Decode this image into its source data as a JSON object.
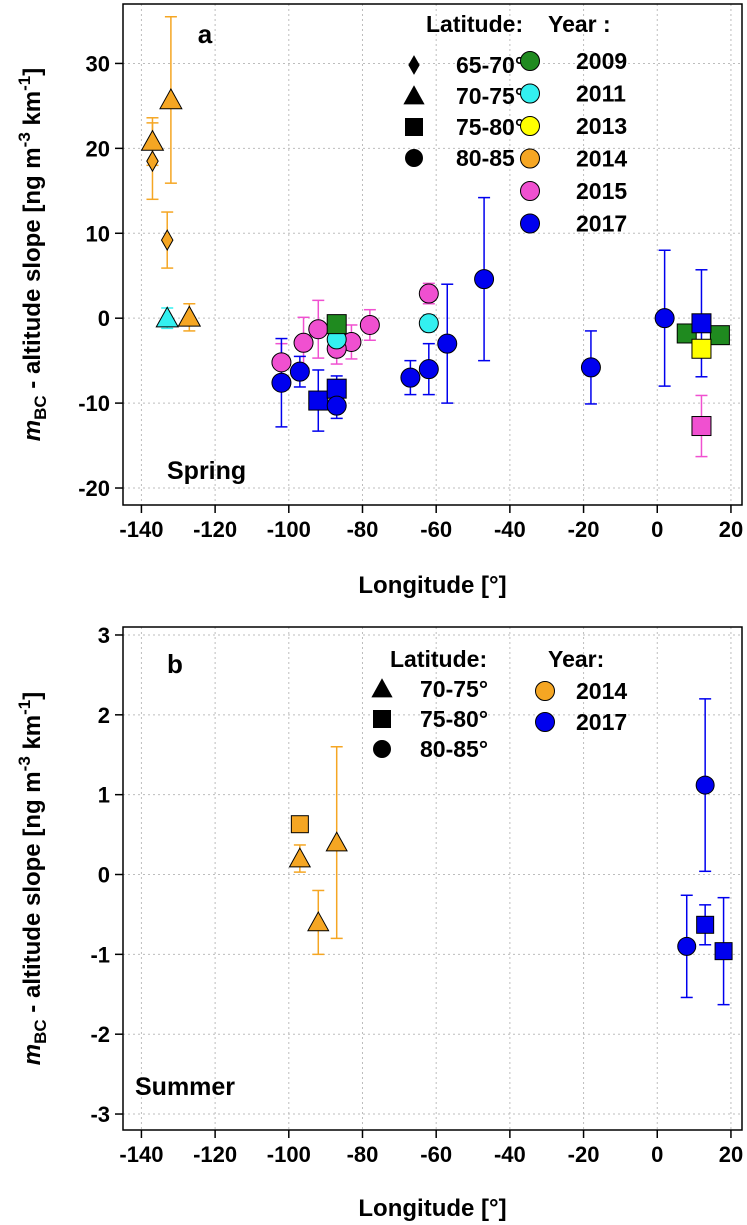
{
  "chart_data": [
    {
      "type": "scatter",
      "panel_label": "a",
      "season": "Spring",
      "xlabel": "Longitude [°]",
      "ylabel_main": "m",
      "ylabel_sub": "BC",
      "ylabel_rest": " - altitude slope [ng m",
      "ylabel_exp1": "-3",
      "ylabel_km": " km",
      "ylabel_exp2": "-1",
      "ylabel_close": "]",
      "xlim": [
        -145,
        23
      ],
      "ylim": [
        -22,
        37
      ],
      "xticks": [
        -140,
        -120,
        -100,
        -80,
        -60,
        -40,
        -20,
        0,
        20
      ],
      "yticks": [
        -20,
        -10,
        0,
        10,
        20,
        30
      ],
      "grid": true,
      "legend_latitude_title": "Latitude:",
      "legend_year_title": "Year :",
      "legend_latitude": [
        {
          "shape": "diamond",
          "label": "65-70°"
        },
        {
          "shape": "triangle",
          "label": "70-75°"
        },
        {
          "shape": "square",
          "label": "75-80°"
        },
        {
          "shape": "circle",
          "label": "80-85"
        }
      ],
      "legend_year": [
        {
          "year": "2009",
          "color": "#1f8a1f"
        },
        {
          "year": "2011",
          "color": "#33f0f0"
        },
        {
          "year": "2013",
          "color": "#ffff00"
        },
        {
          "year": "2014",
          "color": "#f5a623"
        },
        {
          "year": "2015",
          "color": "#f050d0"
        },
        {
          "year": "2017",
          "color": "#0000ee"
        }
      ],
      "points": [
        {
          "x": -137,
          "y": 18.5,
          "err": [
            4.5,
            4.5
          ],
          "shape": "diamond",
          "year": "2014"
        },
        {
          "x": -133,
          "y": 9.2,
          "err": [
            3.3,
            3.3
          ],
          "shape": "diamond",
          "year": "2014"
        },
        {
          "x": -137,
          "y": 20.8,
          "err": [
            2.8,
            2.8
          ],
          "shape": "triangle",
          "year": "2014"
        },
        {
          "x": -132,
          "y": 25.7,
          "err": [
            9.8,
            9.8
          ],
          "shape": "triangle",
          "year": "2014"
        },
        {
          "x": -127,
          "y": 0.1,
          "err": [
            1.6,
            1.6
          ],
          "shape": "triangle",
          "year": "2014"
        },
        {
          "x": -133,
          "y": 0.0,
          "err": [
            1.2,
            1.2
          ],
          "shape": "triangle",
          "year": "2011"
        },
        {
          "x": -102,
          "y": -5.2,
          "err": [
            2.2,
            2.2
          ],
          "shape": "circle",
          "year": "2015"
        },
        {
          "x": -96,
          "y": -2.9,
          "err": [
            3.0,
            3.0
          ],
          "shape": "circle",
          "year": "2015"
        },
        {
          "x": -92,
          "y": -1.3,
          "err": [
            3.4,
            3.4
          ],
          "shape": "circle",
          "year": "2015"
        },
        {
          "x": -83,
          "y": -2.8,
          "err": [
            2.0,
            2.0
          ],
          "shape": "circle",
          "year": "2015"
        },
        {
          "x": -78,
          "y": -0.8,
          "err": [
            1.8,
            1.8
          ],
          "shape": "circle",
          "year": "2015"
        },
        {
          "x": -87,
          "y": -3.6,
          "err": [
            1.8,
            1.8
          ],
          "shape": "circle",
          "year": "2015"
        },
        {
          "x": -62,
          "y": 2.9,
          "err": [
            1.2,
            1.2
          ],
          "shape": "circle",
          "year": "2015"
        },
        {
          "x": 12,
          "y": -12.7,
          "err": [
            3.6,
            3.6
          ],
          "shape": "square",
          "year": "2015"
        },
        {
          "x": -87,
          "y": -2.5,
          "err": [
            1.2,
            1.2
          ],
          "shape": "circle",
          "year": "2011"
        },
        {
          "x": -62,
          "y": -0.6,
          "err": [
            1.0,
            1.0
          ],
          "shape": "circle",
          "year": "2011"
        },
        {
          "x": -87,
          "y": -0.7,
          "err": [
            0.8,
            0.8
          ],
          "shape": "square",
          "year": "2009"
        },
        {
          "x": 8,
          "y": -1.8,
          "err": [
            0.8,
            0.8
          ],
          "shape": "square",
          "year": "2009"
        },
        {
          "x": 17,
          "y": -2.0,
          "err": [
            0.8,
            0.8
          ],
          "shape": "square",
          "year": "2009"
        },
        {
          "x": 12,
          "y": -3.6,
          "err": [
            0.8,
            0.8
          ],
          "shape": "square",
          "year": "2013"
        },
        {
          "x": -102,
          "y": -7.6,
          "err": [
            5.2,
            5.2
          ],
          "shape": "circle",
          "year": "2017"
        },
        {
          "x": -97,
          "y": -6.3,
          "err": [
            1.8,
            1.8
          ],
          "shape": "circle",
          "year": "2017"
        },
        {
          "x": -92,
          "y": -9.7,
          "err": [
            3.6,
            3.6
          ],
          "shape": "square",
          "year": "2017"
        },
        {
          "x": -87,
          "y": -8.3,
          "err": [
            1.5,
            1.5
          ],
          "shape": "square",
          "year": "2017"
        },
        {
          "x": -87,
          "y": -10.3,
          "err": [
            1.5,
            1.5
          ],
          "shape": "circle",
          "year": "2017"
        },
        {
          "x": -67,
          "y": -7.0,
          "err": [
            2.0,
            2.0
          ],
          "shape": "circle",
          "year": "2017"
        },
        {
          "x": -62,
          "y": -6.0,
          "err": [
            3.0,
            3.0
          ],
          "shape": "circle",
          "year": "2017"
        },
        {
          "x": -57,
          "y": -3.0,
          "err": [
            7.0,
            7.0
          ],
          "shape": "circle",
          "year": "2017"
        },
        {
          "x": -47,
          "y": 4.6,
          "err": [
            9.6,
            9.6
          ],
          "shape": "circle",
          "year": "2017"
        },
        {
          "x": -18,
          "y": -5.8,
          "err": [
            4.3,
            4.3
          ],
          "shape": "circle",
          "year": "2017"
        },
        {
          "x": 2,
          "y": 0.0,
          "err": [
            8.0,
            8.0
          ],
          "shape": "circle",
          "year": "2017"
        },
        {
          "x": 12,
          "y": -0.6,
          "err": [
            6.3,
            6.3
          ],
          "shape": "square",
          "year": "2017"
        }
      ]
    },
    {
      "type": "scatter",
      "panel_label": "b",
      "season": "Summer",
      "xlabel": "Longitude [°]",
      "ylabel_main": "m",
      "ylabel_sub": "BC",
      "ylabel_rest": " - altitude slope [ng m",
      "ylabel_exp1": "-3",
      "ylabel_km": " km",
      "ylabel_exp2": "-1",
      "ylabel_close": "]",
      "xlim": [
        -145,
        23
      ],
      "ylim": [
        -3.2,
        3.1
      ],
      "xticks": [
        -140,
        -120,
        -100,
        -80,
        -60,
        -40,
        -20,
        0,
        20
      ],
      "yticks": [
        -3,
        -2,
        -1,
        0,
        1,
        2,
        3
      ],
      "grid": true,
      "legend_latitude_title": "Latitude:",
      "legend_year_title": "Year:",
      "legend_latitude": [
        {
          "shape": "triangle",
          "label": "70-75°"
        },
        {
          "shape": "square",
          "label": "75-80°"
        },
        {
          "shape": "circle",
          "label": "80-85°"
        }
      ],
      "legend_year": [
        {
          "year": "2014",
          "color": "#f5a623"
        },
        {
          "year": "2017",
          "color": "#0000ee"
        }
      ],
      "points": [
        {
          "x": -97,
          "y": 0.63,
          "err": [
            0.1,
            0.1
          ],
          "shape": "square",
          "year": "2014"
        },
        {
          "x": -97,
          "y": 0.2,
          "err": [
            0.17,
            0.17
          ],
          "shape": "triangle",
          "year": "2014"
        },
        {
          "x": -92,
          "y": -0.6,
          "err": [
            0.4,
            0.4
          ],
          "shape": "triangle",
          "year": "2014"
        },
        {
          "x": -87,
          "y": 0.4,
          "err": [
            1.2,
            1.2
          ],
          "shape": "triangle",
          "year": "2014"
        },
        {
          "x": 8,
          "y": -0.9,
          "err": [
            0.64,
            0.64
          ],
          "shape": "circle",
          "year": "2017"
        },
        {
          "x": 13,
          "y": 1.12,
          "err": [
            1.08,
            1.08
          ],
          "shape": "circle",
          "year": "2017"
        },
        {
          "x": 13,
          "y": -0.63,
          "err": [
            0.25,
            0.25
          ],
          "shape": "square",
          "year": "2017"
        },
        {
          "x": 18,
          "y": -0.96,
          "err": [
            0.67,
            0.67
          ],
          "shape": "square",
          "year": "2017"
        }
      ]
    }
  ]
}
